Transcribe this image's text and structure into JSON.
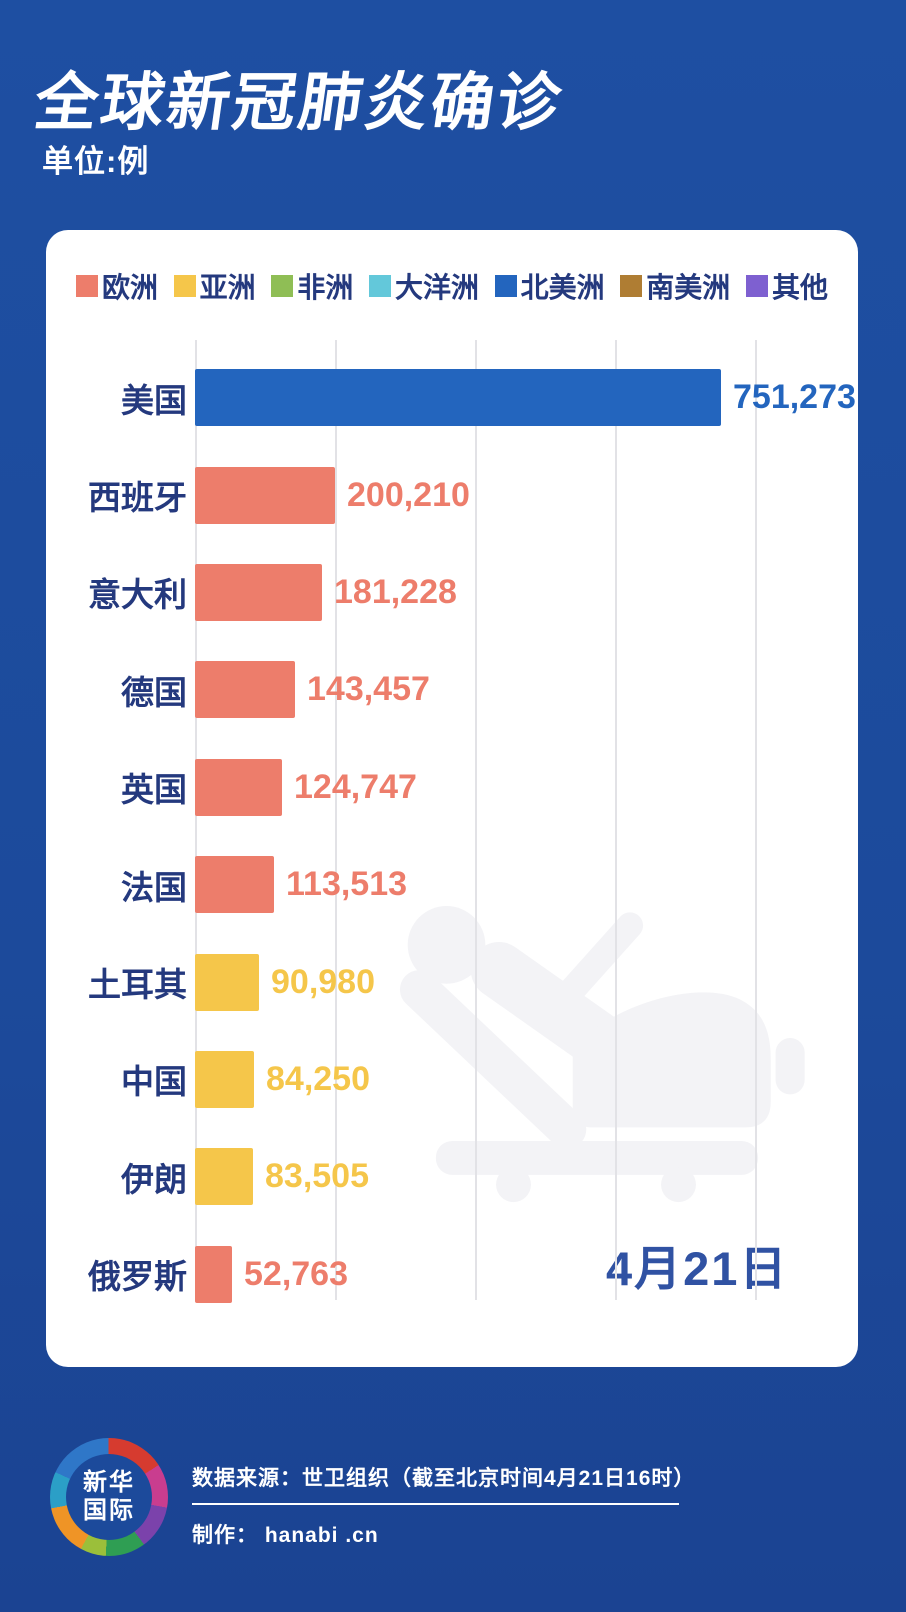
{
  "header": {
    "title": "全球新冠肺炎确诊",
    "subtitle": "单位:例"
  },
  "chart_data": {
    "type": "bar",
    "orientation": "horizontal",
    "title": "全球新冠肺炎确诊",
    "unit_label": "单位:例",
    "axis_max": 800000,
    "gridline_interval": 200000,
    "grid": true,
    "legend_position": "top",
    "legend": [
      {
        "label": "欧洲",
        "color": "#ED7D6B"
      },
      {
        "label": "亚洲",
        "color": "#F5C64A"
      },
      {
        "label": "非洲",
        "color": "#8FBE55"
      },
      {
        "label": "大洋洲",
        "color": "#63C8DA"
      },
      {
        "label": "北美洲",
        "color": "#2365BE"
      },
      {
        "label": "南美洲",
        "color": "#AF7D33"
      },
      {
        "label": "其他",
        "color": "#7E60D0"
      }
    ],
    "rows": [
      {
        "country": "美国",
        "continent": "北美洲",
        "value": 751273,
        "value_label": "751,273"
      },
      {
        "country": "西班牙",
        "continent": "欧洲",
        "value": 200210,
        "value_label": "200,210"
      },
      {
        "country": "意大利",
        "continent": "欧洲",
        "value": 181228,
        "value_label": "181,228"
      },
      {
        "country": "德国",
        "continent": "欧洲",
        "value": 143457,
        "value_label": "143,457"
      },
      {
        "country": "英国",
        "continent": "欧洲",
        "value": 124747,
        "value_label": "124,747"
      },
      {
        "country": "法国",
        "continent": "欧洲",
        "value": 113513,
        "value_label": "113,513"
      },
      {
        "country": "土耳其",
        "continent": "亚洲",
        "value": 90980,
        "value_label": "90,980"
      },
      {
        "country": "中国",
        "continent": "亚洲",
        "value": 84250,
        "value_label": "84,250"
      },
      {
        "country": "伊朗",
        "continent": "亚洲",
        "value": 83505,
        "value_label": "83,505"
      },
      {
        "country": "俄罗斯",
        "continent": "欧洲",
        "value": 52763,
        "value_label": "52,763"
      }
    ],
    "date_label": "4月21日"
  },
  "footer": {
    "logo_line1": "新华",
    "logo_line2": "国际",
    "source": "数据来源：世卫组织（截至北京时间4月21日16时）",
    "credit": "制作： hanabi .cn"
  },
  "colors": {
    "background": "#1C4A9B",
    "card": "#FFFFFF",
    "country_label": "#24397E",
    "date_label": "#3052A3",
    "gridline": "#E2E2E6",
    "watermark": "#F3F3F6"
  }
}
